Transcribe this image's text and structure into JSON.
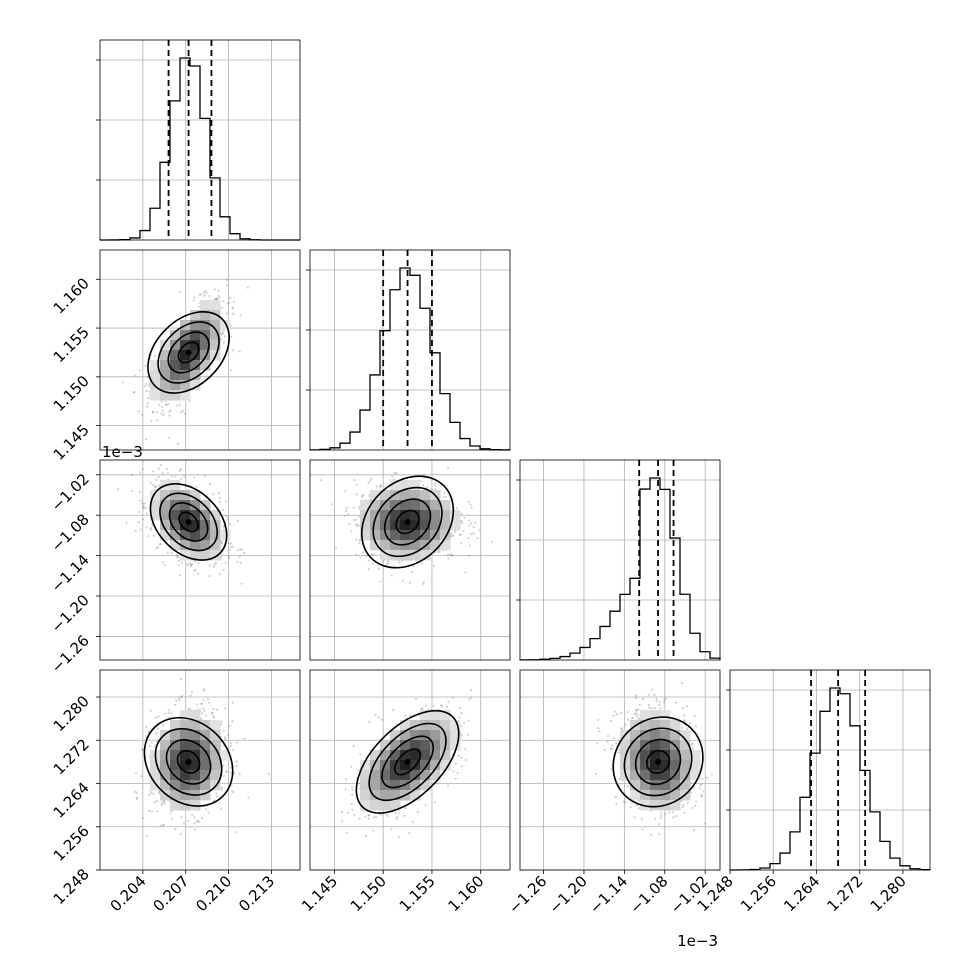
{
  "chart_data": {
    "type": "corner",
    "grid": true,
    "parameters": [
      {
        "range": [
          0.201,
          0.215
        ],
        "ticks": [
          0.204,
          0.207,
          0.21,
          0.213
        ],
        "tick_labels": [
          "0.204",
          "0.207",
          "0.210",
          "0.213"
        ],
        "offset_label": "",
        "quantiles": [
          0.2058,
          0.2072,
          0.2088
        ],
        "center": 0.2072,
        "sigma": 0.00125
      },
      {
        "range": [
          1.1425,
          1.163
        ],
        "ticks": [
          1.145,
          1.15,
          1.155,
          1.16
        ],
        "tick_labels": [
          "1.145",
          "1.150",
          "1.155",
          "1.160"
        ],
        "offset_label": "",
        "quantiles": [
          1.15,
          1.1525,
          1.155
        ],
        "center": 1.1525,
        "sigma": 0.0025
      },
      {
        "range": [
          -1.295,
          -0.998
        ],
        "ticks": [
          -1.26,
          -1.2,
          -1.14,
          -1.08,
          -1.02
        ],
        "tick_labels": [
          "−1.26",
          "−1.20",
          "−1.14",
          "−1.08",
          "−1.02"
        ],
        "offset_label": "1e−3",
        "quantiles": [
          -1.118,
          -1.09,
          -1.067
        ],
        "center": -1.09,
        "sigma": 0.028
      },
      {
        "range": [
          1.248,
          1.285
        ],
        "ticks": [
          1.248,
          1.256,
          1.264,
          1.272,
          1.28
        ],
        "tick_labels": [
          "1.248",
          "1.256",
          "1.264",
          "1.272",
          "1.280"
        ],
        "offset_label": "",
        "quantiles": [
          1.263,
          1.268,
          1.273
        ],
        "center": 1.268,
        "sigma": 0.0045
      }
    ],
    "correlations": [
      {
        "row": 1,
        "col": 0,
        "rho": 0.6
      },
      {
        "row": 2,
        "col": 0,
        "rho": -0.4
      },
      {
        "row": 2,
        "col": 1,
        "rho": 0.0
      },
      {
        "row": 3,
        "col": 0,
        "rho": 0.1
      },
      {
        "row": 3,
        "col": 1,
        "rho": 0.55
      },
      {
        "row": 3,
        "col": 2,
        "rho": -0.15
      }
    ],
    "contour_levels_sigma": [
      0.5,
      1.0,
      1.5,
      2.0
    ]
  }
}
